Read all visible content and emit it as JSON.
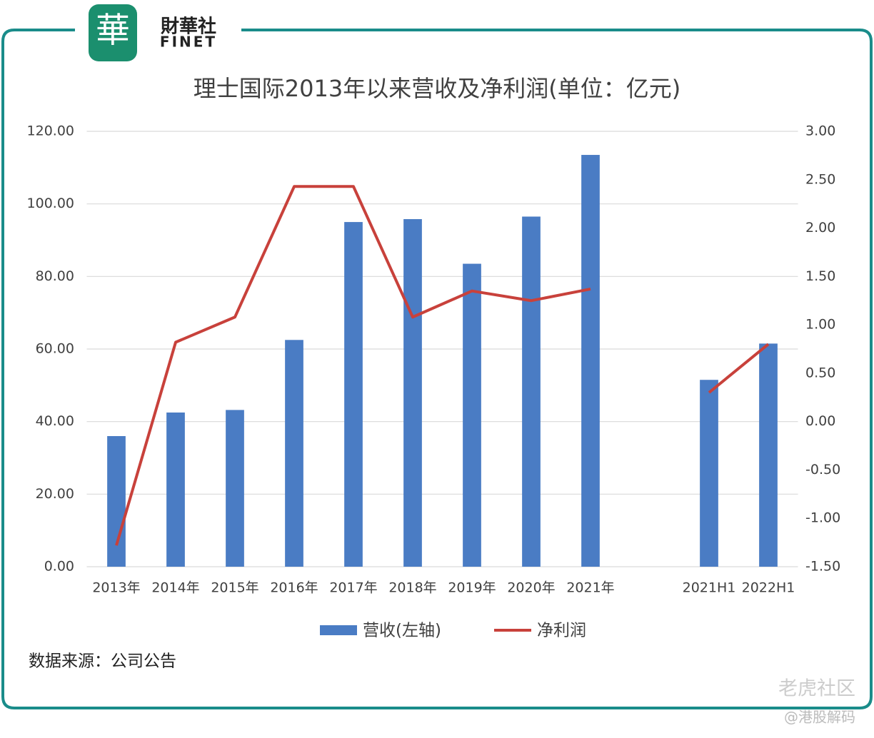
{
  "header": {
    "logo_char": "華",
    "brand": "財華社",
    "brand_en": "FINET"
  },
  "chart_data": {
    "type": "bar-line",
    "title": "理士国际2013年以来营收及净利润(单位：亿元)",
    "categories": [
      "2013年",
      "2014年",
      "2015年",
      "2016年",
      "2017年",
      "2018年",
      "2019年",
      "2020年",
      "2021年",
      null,
      "2021H1",
      "2022H1"
    ],
    "series": [
      {
        "name": "营收(左轴)",
        "type": "bar",
        "color": "#4a7cc4",
        "values": [
          36,
          42.5,
          43.2,
          62.5,
          95,
          95.8,
          83.5,
          96.5,
          113.5,
          null,
          51.5,
          61.5
        ]
      },
      {
        "name": "净利润",
        "type": "line",
        "axis": "y2",
        "color": "#c8413b",
        "values": [
          -1.28,
          0.82,
          1.08,
          2.43,
          2.43,
          1.08,
          1.35,
          1.25,
          1.37,
          null,
          0.3,
          0.8
        ]
      }
    ],
    "ylim": [
      0,
      120
    ],
    "yticks": [
      {
        "value": 0,
        "label": "0.00"
      },
      {
        "value": 20,
        "label": "20.00"
      },
      {
        "value": 40,
        "label": "40.00"
      },
      {
        "value": 60,
        "label": "60.00"
      },
      {
        "value": 80,
        "label": "80.00"
      },
      {
        "value": 100,
        "label": "100.00"
      },
      {
        "value": 120,
        "label": "120.00"
      }
    ],
    "y2lim": [
      -1.5,
      3
    ],
    "y2ticks": [
      {
        "value": -1.5,
        "label": "-1.50"
      },
      {
        "value": -1,
        "label": "-1.00"
      },
      {
        "value": -0.5,
        "label": "-0.50"
      },
      {
        "value": 0,
        "label": "0.00"
      },
      {
        "value": 0.5,
        "label": "0.50"
      },
      {
        "value": 1,
        "label": "1.00"
      },
      {
        "value": 1.5,
        "label": "1.50"
      },
      {
        "value": 2,
        "label": "2.00"
      },
      {
        "value": 2.5,
        "label": "2.50"
      },
      {
        "value": 3,
        "label": "3.00"
      }
    ],
    "grid": true,
    "legend": "bottom"
  },
  "footer": {
    "source": "数据来源：公司公告",
    "watermark": "老虎社区",
    "author": "@港股解码"
  }
}
